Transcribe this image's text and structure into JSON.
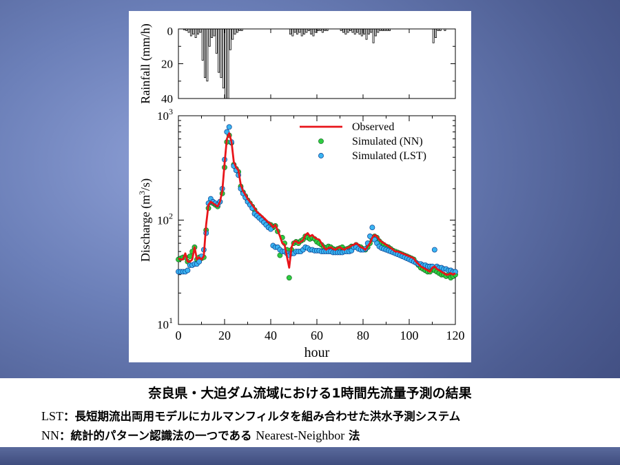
{
  "caption": {
    "title": "奈良県・大迫ダム流域における1時間先流量予測の結果",
    "lst_abbr": "LST",
    "lst_text": "：長短期流出両用モデルにカルマンフィルタを組み合わせた洪水予測システム",
    "nn_abbr": "NN",
    "nn_text": "：統計的パターン認識法の一つである",
    "nn_en": "Nearest-Neighbor",
    "nn_tail": "法"
  },
  "chart_data": [
    {
      "type": "bar",
      "ylabel": "Rainfall (mm/h)",
      "ylim": [
        40,
        0
      ],
      "yticks": [
        "0",
        "20",
        "40"
      ],
      "xlim": [
        0,
        120
      ],
      "x": [
        1,
        2,
        3,
        4,
        5,
        6,
        7,
        8,
        9,
        10,
        11,
        12,
        13,
        14,
        15,
        16,
        17,
        18,
        19,
        20,
        21,
        22,
        23,
        24,
        25,
        26,
        27,
        28,
        29,
        30,
        31,
        32,
        33,
        34,
        35,
        36,
        37,
        38,
        39,
        40,
        41,
        42,
        43,
        44,
        45,
        46,
        47,
        48,
        49,
        50,
        51,
        52,
        53,
        54,
        55,
        56,
        57,
        58,
        59,
        60,
        61,
        62,
        63,
        64,
        65,
        66,
        67,
        68,
        69,
        70,
        71,
        72,
        73,
        74,
        75,
        76,
        77,
        78,
        79,
        80,
        81,
        82,
        83,
        84,
        85,
        86,
        87,
        88,
        89,
        90,
        91,
        92,
        93,
        94,
        95,
        96,
        97,
        98,
        99,
        100,
        101,
        102,
        103,
        104,
        105,
        106,
        107,
        108,
        109,
        110,
        111,
        112,
        113,
        114,
        115,
        116,
        117,
        118,
        119,
        120
      ],
      "values": [
        0,
        0,
        0.5,
        1,
        2,
        4,
        3,
        5,
        3,
        2,
        18,
        28,
        30,
        10,
        5,
        4,
        14,
        25,
        28,
        34,
        40,
        40,
        12,
        6,
        3,
        2,
        1,
        1,
        0,
        0,
        0,
        0,
        0,
        0,
        0,
        0,
        0,
        0,
        0,
        0,
        0,
        0,
        0,
        0,
        0,
        0,
        0,
        0,
        3,
        4,
        2,
        3,
        2,
        4,
        3,
        2,
        1,
        3,
        4,
        2,
        1,
        1,
        2,
        1,
        1,
        0,
        0,
        0,
        0,
        0,
        1,
        2,
        3,
        2,
        1,
        2,
        3,
        2,
        3,
        4,
        3,
        6,
        3,
        2,
        8,
        4,
        2,
        1,
        1,
        1,
        1,
        1,
        0,
        0,
        0,
        0,
        0,
        0,
        0,
        0,
        0,
        0,
        0,
        0,
        0,
        0,
        0,
        0,
        0,
        0,
        8,
        5,
        1,
        1,
        0,
        1,
        0,
        0,
        0,
        0
      ]
    },
    {
      "type": "line",
      "ylabel": "Discharge (m3/s)",
      "xlabel": "hour",
      "yscale": "log",
      "ylim": [
        10,
        1000
      ],
      "yticks": [
        "10",
        "10",
        "10"
      ],
      "ytick_exponents": [
        "1",
        "2",
        "3"
      ],
      "xlim": [
        0,
        120
      ],
      "xticks": [
        "0",
        "20",
        "40",
        "60",
        "80",
        "100",
        "120"
      ],
      "legend": "top-right",
      "series": [
        {
          "name": "Observed",
          "style": "line",
          "color": "#e8141a",
          "x": [
            0,
            1,
            2,
            3,
            4,
            5,
            6,
            7,
            8,
            9,
            10,
            11,
            12,
            13,
            14,
            15,
            16,
            17,
            18,
            19,
            20,
            21,
            22,
            23,
            24,
            25,
            26,
            27,
            28,
            29,
            30,
            31,
            32,
            33,
            34,
            35,
            36,
            37,
            38,
            39,
            40,
            41,
            42,
            43,
            44,
            45,
            46,
            47,
            48,
            49,
            50,
            51,
            52,
            53,
            54,
            55,
            56,
            57,
            58,
            59,
            60,
            61,
            62,
            63,
            64,
            65,
            66,
            67,
            68,
            69,
            70,
            71,
            72,
            73,
            74,
            75,
            76,
            77,
            78,
            79,
            80,
            81,
            82,
            83,
            84,
            85,
            86,
            87,
            88,
            89,
            90,
            91,
            92,
            93,
            94,
            95,
            96,
            97,
            98,
            99,
            100,
            101,
            102,
            103,
            104,
            105,
            106,
            107,
            108,
            109,
            110,
            111,
            112,
            113,
            114,
            115,
            116,
            117,
            118,
            119,
            120
          ],
          "y": [
            43,
            42,
            42,
            48,
            40,
            40,
            42,
            55,
            42,
            44,
            42,
            45,
            90,
            140,
            150,
            145,
            140,
            135,
            150,
            190,
            350,
            600,
            680,
            560,
            360,
            320,
            300,
            220,
            190,
            175,
            160,
            150,
            140,
            130,
            120,
            115,
            110,
            105,
            100,
            95,
            92,
            85,
            90,
            80,
            70,
            60,
            58,
            45,
            35,
            55,
            62,
            63,
            60,
            62,
            64,
            72,
            75,
            70,
            72,
            68,
            66,
            65,
            60,
            55,
            52,
            54,
            55,
            53,
            52,
            54,
            55,
            53,
            52,
            54,
            55,
            57,
            58,
            60,
            58,
            55,
            54,
            52,
            56,
            60,
            68,
            72,
            70,
            65,
            62,
            60,
            58,
            56,
            54,
            52,
            50,
            50,
            49,
            48,
            47,
            46,
            45,
            44,
            43,
            40,
            38,
            36,
            35,
            34,
            33,
            32,
            35,
            36,
            34,
            33,
            32,
            31,
            30,
            30,
            31,
            30,
            31
          ]
        },
        {
          "name": "Simulated (NN)",
          "style": "markers",
          "color": "#2ecc40",
          "x": [
            0,
            1,
            2,
            3,
            4,
            5,
            6,
            7,
            8,
            9,
            10,
            11,
            12,
            13,
            14,
            15,
            16,
            17,
            18,
            19,
            20,
            21,
            22,
            23,
            24,
            25,
            26,
            27,
            28,
            29,
            30,
            31,
            32,
            33,
            34,
            35,
            36,
            37,
            38,
            39,
            40,
            41,
            42,
            43,
            44,
            45,
            46,
            47,
            48,
            49,
            50,
            51,
            52,
            53,
            54,
            55,
            56,
            57,
            58,
            59,
            60,
            61,
            62,
            63,
            64,
            65,
            66,
            67,
            68,
            69,
            70,
            71,
            72,
            73,
            74,
            75,
            76,
            77,
            78,
            79,
            80,
            81,
            82,
            83,
            84,
            85,
            86,
            87,
            88,
            89,
            90,
            91,
            92,
            93,
            94,
            95,
            96,
            97,
            98,
            99,
            100,
            101,
            102,
            103,
            104,
            105,
            106,
            107,
            108,
            109,
            110,
            111,
            112,
            113,
            114,
            115,
            116,
            117,
            118,
            119,
            120
          ],
          "y": [
            42,
            43,
            44,
            44,
            40,
            45,
            50,
            55,
            42,
            44,
            43,
            44,
            80,
            130,
            150,
            145,
            140,
            135,
            150,
            180,
            320,
            560,
            650,
            550,
            340,
            310,
            290,
            210,
            185,
            170,
            155,
            145,
            135,
            125,
            115,
            110,
            105,
            100,
            95,
            92,
            90,
            85,
            88,
            78,
            46,
            68,
            60,
            52,
            28,
            52,
            60,
            62,
            60,
            63,
            65,
            70,
            68,
            66,
            68,
            66,
            62,
            60,
            58,
            55,
            54,
            56,
            55,
            53,
            52,
            53,
            54,
            55,
            52,
            53,
            54,
            56,
            56,
            58,
            56,
            55,
            53,
            52,
            55,
            60,
            66,
            70,
            68,
            63,
            60,
            58,
            56,
            55,
            53,
            51,
            50,
            49,
            48,
            47,
            46,
            45,
            44,
            43,
            42,
            39,
            37,
            35,
            34,
            33,
            32,
            32,
            34,
            33,
            32,
            31,
            30,
            30,
            29,
            30,
            28,
            29,
            30
          ]
        },
        {
          "name": "Simulated (LST)",
          "style": "markers",
          "color": "#3ab4f2",
          "x": [
            0,
            1,
            2,
            3,
            4,
            5,
            6,
            7,
            8,
            9,
            10,
            11,
            12,
            13,
            14,
            15,
            16,
            17,
            18,
            19,
            20,
            21,
            22,
            23,
            24,
            25,
            26,
            27,
            28,
            29,
            30,
            31,
            32,
            33,
            34,
            35,
            36,
            37,
            38,
            39,
            40,
            41,
            42,
            43,
            44,
            45,
            46,
            47,
            48,
            49,
            50,
            51,
            52,
            53,
            54,
            55,
            56,
            57,
            58,
            59,
            60,
            61,
            62,
            63,
            64,
            65,
            66,
            67,
            68,
            69,
            70,
            71,
            72,
            73,
            74,
            75,
            76,
            77,
            78,
            79,
            80,
            81,
            82,
            83,
            84,
            85,
            86,
            87,
            88,
            89,
            90,
            91,
            92,
            93,
            94,
            95,
            96,
            97,
            98,
            99,
            100,
            101,
            102,
            103,
            104,
            105,
            106,
            107,
            108,
            109,
            110,
            111,
            112,
            113,
            114,
            115,
            116,
            117,
            118,
            119,
            120
          ],
          "y": [
            32,
            32,
            32,
            32,
            33,
            37,
            37,
            38,
            38,
            40,
            45,
            52,
            75,
            145,
            160,
            150,
            145,
            140,
            150,
            200,
            380,
            700,
            780,
            560,
            330,
            300,
            270,
            200,
            180,
            165,
            150,
            140,
            130,
            115,
            110,
            105,
            100,
            95,
            90,
            85,
            82,
            57,
            55,
            55,
            52,
            50,
            50,
            48,
            46,
            48,
            48,
            50,
            50,
            50,
            52,
            55,
            54,
            52,
            52,
            51,
            51,
            51,
            50,
            50,
            50,
            50,
            50,
            49,
            49,
            49,
            49,
            49,
            50,
            50,
            50,
            51,
            55,
            55,
            53,
            52,
            52,
            53,
            60,
            70,
            85,
            65,
            60,
            56,
            54,
            53,
            52,
            51,
            50,
            49,
            48,
            47,
            46,
            45,
            44,
            43,
            42,
            41,
            40,
            39,
            38,
            38,
            37,
            37,
            36,
            36,
            36,
            52,
            36,
            35,
            35,
            34,
            34,
            33,
            33,
            32,
            32
          ]
        }
      ]
    }
  ]
}
